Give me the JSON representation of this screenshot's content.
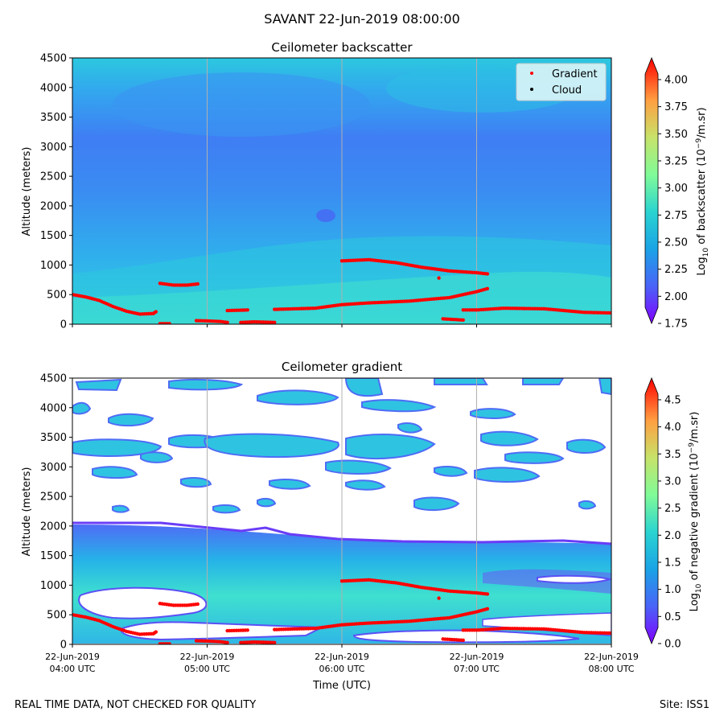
{
  "suptitle": "SAVANT 22-Jun-2019 08:00:00",
  "footer": {
    "left": "REAL TIME DATA, NOT CHECKED FOR QUALITY",
    "right": "Site: ISS1"
  },
  "colors": {
    "gradient_points": "#ff0000",
    "cloud_points": "#000000",
    "legend_bg": "#d3f3f7",
    "grid": "#b0b0b0"
  },
  "chart_data": [
    {
      "type": "heatmap",
      "title": "Ceilometer backscatter",
      "xlabel": "",
      "ylabel": "Altitude (meters)",
      "xlim": [
        "04:00 UTC",
        "08:00 UTC"
      ],
      "ylim": [
        0,
        4500
      ],
      "yticks": [
        "0",
        "500",
        "1000",
        "1500",
        "2000",
        "2500",
        "3000",
        "3500",
        "4000",
        "4500"
      ],
      "grid": "vertical lines at 05:00, 06:00, 07:00 UTC",
      "legend": {
        "placement": "top-right",
        "entries": [
          "Gradient",
          "Cloud"
        ]
      },
      "colorbar": {
        "label_main": "Log",
        "label_sub": "10",
        "label_rest": " of backscatter (10",
        "label_sup": "−9",
        "label_end": "/m.sr)",
        "range": [
          1.75,
          4.2
        ],
        "ticks": [
          "1.75",
          "2.00",
          "2.25",
          "2.50",
          "2.75",
          "3.00",
          "3.25",
          "3.50",
          "3.75",
          "4.00"
        ]
      },
      "series": [
        {
          "name": "Gradient",
          "hours": [
            4.0,
            4.1,
            4.2,
            4.3,
            4.4,
            4.5,
            4.6,
            4.62
          ],
          "altitude": [
            500,
            460,
            400,
            300,
            220,
            170,
            180,
            210
          ]
        },
        {
          "name": "Gradient",
          "hours": [
            4.65,
            4.75,
            4.85,
            4.93
          ],
          "altitude": [
            690,
            660,
            660,
            680
          ]
        },
        {
          "name": "Gradient",
          "hours": [
            4.65,
            4.72
          ],
          "altitude": [
            10,
            10
          ]
        },
        {
          "name": "Gradient",
          "hours": [
            4.92,
            5.0,
            5.1,
            5.15
          ],
          "altitude": [
            60,
            55,
            45,
            30
          ]
        },
        {
          "name": "Gradient",
          "hours": [
            5.15,
            5.3
          ],
          "altitude": [
            230,
            240
          ]
        },
        {
          "name": "Gradient",
          "hours": [
            5.25,
            5.35,
            5.5
          ],
          "altitude": [
            30,
            40,
            30
          ]
        },
        {
          "name": "Gradient",
          "hours": [
            5.5,
            5.8,
            6.0,
            6.2,
            6.5,
            6.8,
            7.0,
            7.08
          ],
          "altitude": [
            250,
            270,
            330,
            360,
            390,
            450,
            550,
            600
          ]
        },
        {
          "name": "Gradient",
          "hours": [
            6.0,
            6.2,
            6.4,
            6.6,
            6.8,
            7.0,
            7.08
          ],
          "altitude": [
            1070,
            1090,
            1040,
            960,
            900,
            870,
            850
          ]
        },
        {
          "name": "Gradient",
          "hours": [
            6.72
          ],
          "altitude": [
            780
          ]
        },
        {
          "name": "Gradient",
          "hours": [
            6.75,
            6.9
          ],
          "altitude": [
            90,
            70
          ]
        },
        {
          "name": "Gradient",
          "hours": [
            6.9,
            7.0,
            7.2,
            7.5,
            7.8,
            8.0
          ],
          "altitude": [
            240,
            240,
            270,
            260,
            200,
            190
          ]
        }
      ]
    },
    {
      "type": "heatmap",
      "title": "Ceilometer gradient",
      "xlabel": "Time (UTC)",
      "ylabel": "Altitude (meters)",
      "xlim": [
        "04:00 UTC",
        "08:00 UTC"
      ],
      "ylim": [
        0,
        4500
      ],
      "yticks": [
        "0",
        "500",
        "1000",
        "1500",
        "2000",
        "2500",
        "3000",
        "3500",
        "4000",
        "4500"
      ],
      "xticks": [
        {
          "date": "22-Jun-2019",
          "time": "04:00 UTC"
        },
        {
          "date": "22-Jun-2019",
          "time": "05:00 UTC"
        },
        {
          "date": "22-Jun-2019",
          "time": "06:00 UTC"
        },
        {
          "date": "22-Jun-2019",
          "time": "07:00 UTC"
        },
        {
          "date": "22-Jun-2019",
          "time": "08:00 UTC"
        }
      ],
      "colorbar": {
        "label_main": "Log",
        "label_sub": "10",
        "label_rest": " of negative gradient (10",
        "label_sup": "−9",
        "label_end": "/m.sr)",
        "range": [
          0.0,
          4.9
        ],
        "ticks": [
          "0.0",
          "0.5",
          "1.0",
          "1.5",
          "2.0",
          "2.5",
          "3.0",
          "3.5",
          "4.0",
          "4.5"
        ]
      }
    }
  ]
}
